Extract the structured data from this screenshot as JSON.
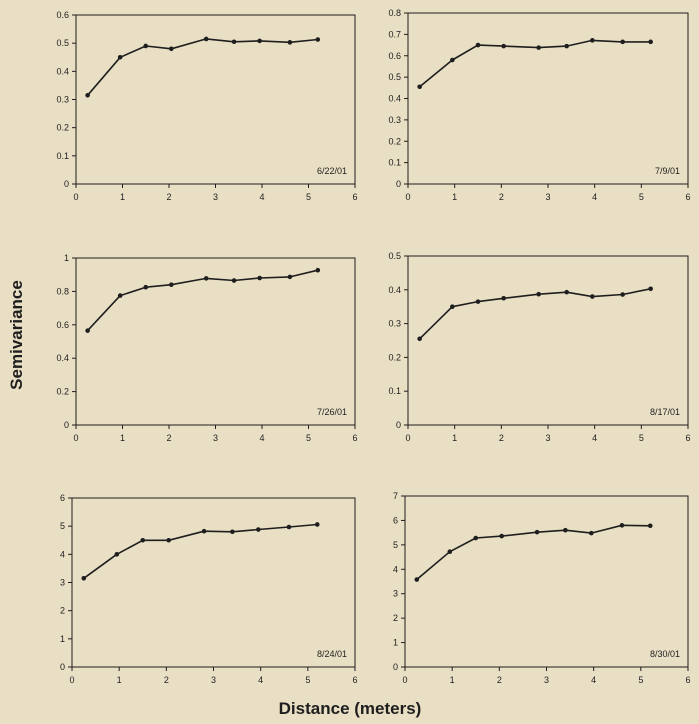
{
  "figure": {
    "ylabel": "Semivariance",
    "xlabel": "Distance (meters)"
  },
  "colors": {
    "background": "#e9dfc4",
    "line": "#1e1e1e"
  },
  "chart_data": [
    {
      "type": "line",
      "annotation": "6/22/01",
      "xlim": [
        0,
        6
      ],
      "ylim": [
        0,
        0.6
      ],
      "xticks": [
        "0",
        "1",
        "2",
        "3",
        "4",
        "5",
        "6"
      ],
      "yticks": [
        "0",
        "0.1",
        "0.2",
        "0.3",
        "0.4",
        "0.5",
        "0.6"
      ],
      "x": [
        0.25,
        0.95,
        1.5,
        2.05,
        2.8,
        3.4,
        3.95,
        4.6,
        5.2
      ],
      "y": [
        0.315,
        0.45,
        0.49,
        0.48,
        0.515,
        0.505,
        0.508,
        0.503,
        0.513
      ]
    },
    {
      "type": "line",
      "annotation": "7/9/01",
      "xlim": [
        0,
        6
      ],
      "ylim": [
        0,
        0.8
      ],
      "xticks": [
        "0",
        "1",
        "2",
        "3",
        "4",
        "5",
        "6"
      ],
      "yticks": [
        "0",
        "0.1",
        "0.2",
        "0.3",
        "0.4",
        "0.5",
        "0.6",
        "0.7",
        "0.8"
      ],
      "x": [
        0.25,
        0.95,
        1.5,
        2.05,
        2.8,
        3.4,
        3.95,
        4.6,
        5.2
      ],
      "y": [
        0.455,
        0.58,
        0.65,
        0.645,
        0.638,
        0.645,
        0.672,
        0.665,
        0.665
      ]
    },
    {
      "type": "line",
      "annotation": "7/26/01",
      "xlim": [
        0,
        6
      ],
      "ylim": [
        0,
        1
      ],
      "xticks": [
        "0",
        "1",
        "2",
        "3",
        "4",
        "5",
        "6"
      ],
      "yticks": [
        "0",
        "0.2",
        "0.4",
        "0.6",
        "0.8",
        "1"
      ],
      "x": [
        0.25,
        0.95,
        1.5,
        2.05,
        2.8,
        3.4,
        3.95,
        4.6,
        5.2
      ],
      "y": [
        0.565,
        0.775,
        0.825,
        0.84,
        0.878,
        0.865,
        0.88,
        0.887,
        0.927
      ]
    },
    {
      "type": "line",
      "annotation": "8/17/01",
      "xlim": [
        0,
        6
      ],
      "ylim": [
        0,
        0.5
      ],
      "xticks": [
        "0",
        "1",
        "2",
        "3",
        "4",
        "5",
        "6"
      ],
      "yticks": [
        "0",
        "0.1",
        "0.2",
        "0.3",
        "0.4",
        "0.5"
      ],
      "x": [
        0.25,
        0.95,
        1.5,
        2.05,
        2.8,
        3.4,
        3.95,
        4.6,
        5.2
      ],
      "y": [
        0.255,
        0.35,
        0.365,
        0.375,
        0.387,
        0.393,
        0.38,
        0.386,
        0.403
      ]
    },
    {
      "type": "line",
      "annotation": "8/24/01",
      "xlim": [
        0,
        6
      ],
      "ylim": [
        0,
        6
      ],
      "xticks": [
        "0",
        "1",
        "2",
        "3",
        "4",
        "5",
        "6"
      ],
      "yticks": [
        "0",
        "1",
        "2",
        "3",
        "4",
        "5",
        "6"
      ],
      "x": [
        0.25,
        0.95,
        1.5,
        2.05,
        2.8,
        3.4,
        3.95,
        4.6,
        5.2
      ],
      "y": [
        3.15,
        4.0,
        4.5,
        4.5,
        4.82,
        4.8,
        4.88,
        4.97,
        5.06
      ]
    },
    {
      "type": "line",
      "annotation": "8/30/01",
      "xlim": [
        0,
        6
      ],
      "ylim": [
        0,
        7
      ],
      "xticks": [
        "0",
        "1",
        "2",
        "3",
        "4",
        "5",
        "6"
      ],
      "yticks": [
        "0",
        "1",
        "2",
        "3",
        "4",
        "5",
        "6",
        "7"
      ],
      "x": [
        0.25,
        0.95,
        1.5,
        2.05,
        2.8,
        3.4,
        3.95,
        4.6,
        5.2
      ],
      "y": [
        3.58,
        4.72,
        5.28,
        5.36,
        5.52,
        5.6,
        5.48,
        5.8,
        5.78
      ]
    }
  ]
}
